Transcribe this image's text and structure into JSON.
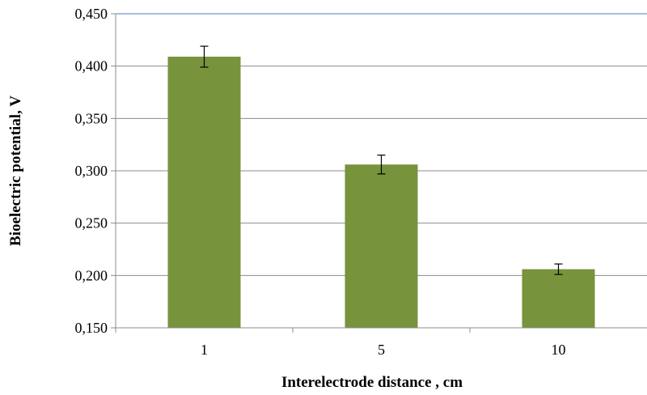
{
  "chart_data": {
    "type": "bar",
    "categories": [
      "1",
      "5",
      "10"
    ],
    "values": [
      0.409,
      0.306,
      0.206
    ],
    "errors": [
      0.01,
      0.009,
      0.005
    ],
    "ylim": [
      0.15,
      0.45
    ],
    "yticks": [
      0.15,
      0.2,
      0.25,
      0.3,
      0.35,
      0.4,
      0.45
    ],
    "ytick_labels": [
      "0,150",
      "0,200",
      "0,250",
      "0,300",
      "0,350",
      "0,400",
      "0,450"
    ],
    "xlabel": "Interelectrode distance , cm",
    "ylabel": "Bioelectric potential, V",
    "grid": "horizontal",
    "colors": {
      "bar": "#77933c",
      "grid": "#8c8c8c",
      "axis": "#8c8c8c",
      "top_border": "#4f81bd",
      "error_bar": "#000000"
    }
  }
}
